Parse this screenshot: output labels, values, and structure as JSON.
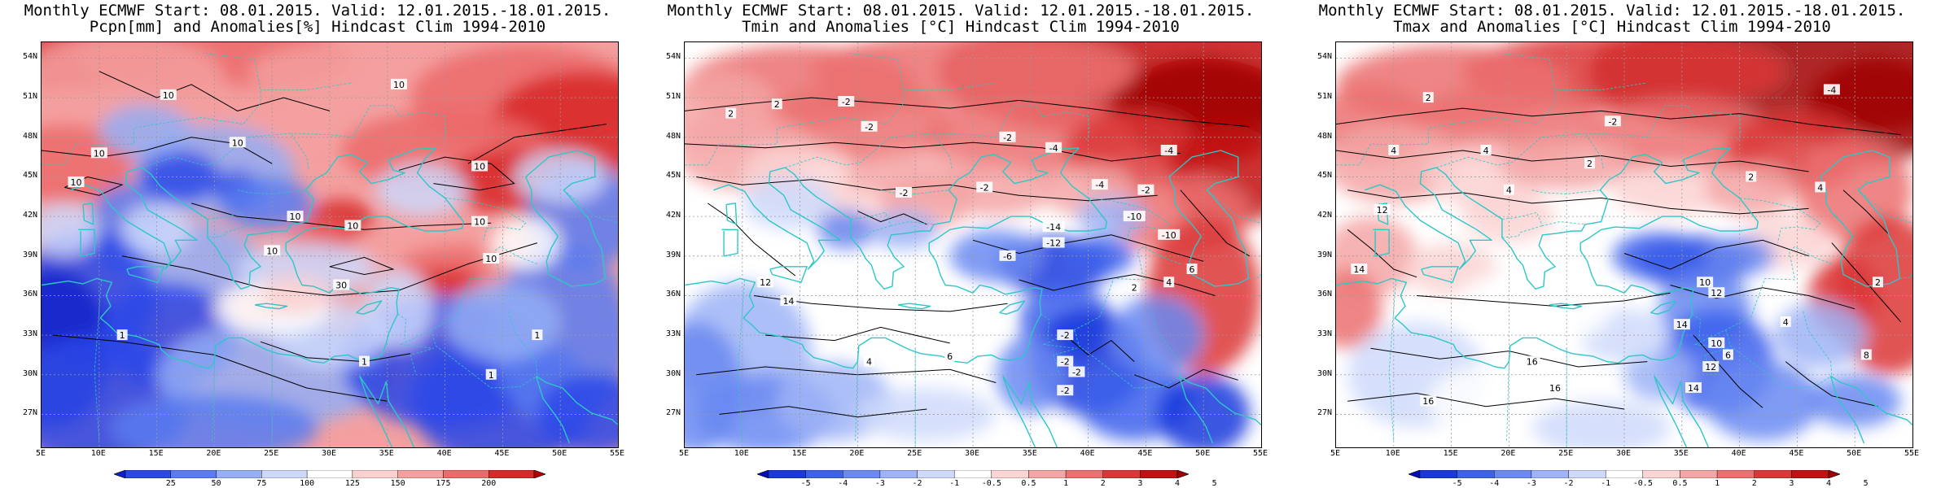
{
  "panels": [
    {
      "id": "pcpn",
      "title_line1": "Monthly ECMWF Start: 08.01.2015. Valid: 12.01.2015.-18.01.2015.",
      "title_line2": "Pcpn[mm] and Anomalies[%] Hindcast Clim 1994-2010",
      "lat_labels": [
        "54N",
        "51N",
        "48N",
        "45N",
        "42N",
        "39N",
        "36N",
        "33N",
        "30N",
        "27N"
      ],
      "lon_labels": [
        "5E",
        "10E",
        "15E",
        "20E",
        "25E",
        "30E",
        "35E",
        "40E",
        "45E",
        "50E",
        "55E"
      ],
      "colorbar_ticks": [
        "25",
        "50",
        "75",
        "100",
        "125",
        "150",
        "175",
        "200"
      ],
      "colorbar_colors": [
        "#1020c8",
        "#2a48e8",
        "#5a7cf0",
        "#95aef5",
        "#cdd8fb",
        "#ffffff",
        "#fbd0d0",
        "#f4a0a0",
        "#ec6a6a",
        "#d82828",
        "#b40000"
      ],
      "contour_labels": [
        "10",
        "10",
        "10",
        "10",
        "10",
        "10",
        "10",
        "10",
        "10",
        "10",
        "10",
        "30",
        "1",
        "1",
        "1",
        "1"
      ],
      "scheme": "precip"
    },
    {
      "id": "tmin",
      "title_line1": "Monthly ECMWF Start: 08.01.2015. Valid: 12.01.2015.-18.01.2015.",
      "title_line2": "Tmin and Anomalies [°C] Hindcast Clim 1994-2010",
      "lat_labels": [
        "54N",
        "51N",
        "48N",
        "45N",
        "42N",
        "39N",
        "36N",
        "33N",
        "30N",
        "27N"
      ],
      "lon_labels": [
        "5E",
        "10E",
        "15E",
        "20E",
        "25E",
        "30E",
        "35E",
        "40E",
        "45E",
        "50E",
        "55E"
      ],
      "colorbar_ticks": [
        "-5",
        "-4",
        "-3",
        "-2",
        "-1",
        "-0.5",
        "0.5",
        "1",
        "2",
        "3",
        "4",
        "5"
      ],
      "colorbar_colors": [
        "#0010b4",
        "#1a38dc",
        "#3c62ec",
        "#6a8af2",
        "#9fb4f7",
        "#cfdafb",
        "#ffffff",
        "#fbd4d4",
        "#f4a6a6",
        "#ec7070",
        "#dc3636",
        "#c41010",
        "#a00000"
      ],
      "contour_labels": [
        "2",
        "-2",
        "2",
        "-2",
        "-2",
        "-4",
        "-4",
        "-4",
        "-2",
        "-2",
        "-2",
        "-10",
        "-10",
        "-14",
        "-12",
        "-6",
        "6",
        "4",
        "2",
        "12",
        "14",
        "-2",
        "-2",
        "-2",
        "-2",
        "4",
        "6"
      ],
      "scheme": "tmin"
    },
    {
      "id": "tmax",
      "title_line1": "Monthly ECMWF Start: 08.01.2015. Valid: 12.01.2015.-18.01.2015.",
      "title_line2": "Tmax and Anomalies [°C] Hindcast Clim 1994-2010",
      "lat_labels": [
        "54N",
        "51N",
        "48N",
        "45N",
        "42N",
        "39N",
        "36N",
        "33N",
        "30N",
        "27N"
      ],
      "lon_labels": [
        "5E",
        "10E",
        "15E",
        "20E",
        "25E",
        "30E",
        "35E",
        "40E",
        "45E",
        "50E",
        "55E"
      ],
      "colorbar_ticks": [
        "-5",
        "-4",
        "-3",
        "-2",
        "-1",
        "-0.5",
        "0.5",
        "1",
        "2",
        "3",
        "4",
        "5"
      ],
      "colorbar_colors": [
        "#0010b4",
        "#1a38dc",
        "#3c62ec",
        "#6a8af2",
        "#9fb4f7",
        "#cfdafb",
        "#ffffff",
        "#fbd4d4",
        "#f4a6a6",
        "#ec7070",
        "#dc3636",
        "#c41010",
        "#a00000"
      ],
      "contour_labels": [
        "2",
        "4",
        "4",
        "-2",
        "-4",
        "2",
        "4",
        "2",
        "4",
        "12",
        "10",
        "14",
        "12",
        "14",
        "16",
        "16",
        "16",
        "14",
        "10",
        "12",
        "6",
        "4",
        "8",
        "2"
      ],
      "scheme": "tmax"
    }
  ],
  "colors": {
    "coastline": "#2ec7c7",
    "contour": "#000000",
    "grid": "#9a9a9a"
  }
}
